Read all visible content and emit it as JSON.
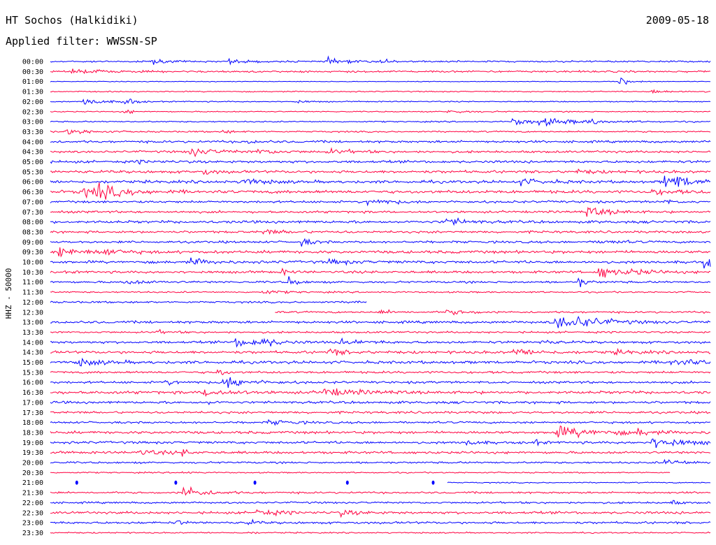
{
  "header": {
    "station": "HT Sochos (Halkidiki)",
    "date": "2009-05-18",
    "filter": "Applied filter: WWSSN-SP"
  },
  "chart_data": {
    "type": "line",
    "title": "HT Sochos (Halkidiki)",
    "ylabel": "HHZ - 50000",
    "xlabel": "",
    "row_labels": [
      "00:00",
      "00:30",
      "01:00",
      "01:30",
      "02:00",
      "02:30",
      "03:00",
      "03:30",
      "04:00",
      "04:30",
      "05:00",
      "05:30",
      "06:00",
      "06:30",
      "07:00",
      "07:30",
      "08:00",
      "08:30",
      "09:00",
      "09:30",
      "10:00",
      "10:30",
      "11:00",
      "11:30",
      "12:00",
      "12:30",
      "13:00",
      "13:30",
      "14:00",
      "14:30",
      "15:00",
      "15:30",
      "16:00",
      "16:30",
      "17:00",
      "17:30",
      "18:00",
      "18:30",
      "19:00",
      "19:30",
      "20:00",
      "20:30",
      "21:00",
      "21:30",
      "22:00",
      "22:30",
      "23:00",
      "23:30"
    ],
    "colors": [
      "#0000ff",
      "#ff0040"
    ],
    "minutes_per_line": 30,
    "rows": [
      {
        "noise": 0.9,
        "events": [
          [
            0.15,
            6,
            0.01
          ],
          [
            0.27,
            4,
            0.015
          ],
          [
            0.42,
            5,
            0.015
          ],
          [
            0.5,
            4,
            0.01
          ]
        ]
      },
      {
        "noise": 1,
        "events": [
          [
            0.03,
            3,
            0.02
          ],
          [
            0.06,
            3,
            0.01
          ]
        ]
      },
      {
        "noise": 0.4,
        "events": [
          [
            0.86,
            10,
            0.008
          ]
        ]
      },
      {
        "noise": 0.6,
        "events": [
          [
            0.91,
            3,
            0.02
          ]
        ]
      },
      {
        "noise": 0.6,
        "events": [
          [
            0.05,
            7,
            0.015
          ],
          [
            0.11,
            18,
            0.006
          ],
          [
            0.37,
            3,
            0.01
          ]
        ]
      },
      {
        "noise": 0.6,
        "events": [
          [
            0.11,
            14,
            0.004
          ],
          [
            0.6,
            3,
            0.02
          ]
        ]
      },
      {
        "noise": 0.7,
        "events": [
          [
            0.7,
            6,
            0.02
          ],
          [
            0.74,
            5,
            0.04
          ],
          [
            0.82,
            8,
            0.004
          ]
        ]
      },
      {
        "noise": 0.8,
        "events": [
          [
            0.02,
            6,
            0.02
          ],
          [
            0.26,
            3,
            0.01
          ]
        ]
      },
      {
        "noise": 1.2,
        "events": [
          [
            0.3,
            3,
            0.01
          ]
        ]
      },
      {
        "noise": 1.2,
        "events": [
          [
            0.21,
            8,
            0.02
          ],
          [
            0.31,
            4,
            0.02
          ],
          [
            0.42,
            4,
            0.02
          ]
        ]
      },
      {
        "noise": 1.3,
        "events": [
          [
            0.13,
            2,
            0.02
          ]
        ]
      },
      {
        "noise": 1.4,
        "events": [
          [
            0.23,
            5,
            0.01
          ],
          [
            0.79,
            3,
            0.02
          ]
        ]
      },
      {
        "noise": 1.5,
        "events": [
          [
            0.29,
            8,
            0.015
          ],
          [
            0.71,
            5,
            0.02
          ],
          [
            0.93,
            14,
            0.012
          ],
          [
            0.95,
            7,
            0.015
          ]
        ]
      },
      {
        "noise": 1.6,
        "events": [
          [
            0.05,
            10,
            0.03
          ],
          [
            0.07,
            8,
            0.015
          ],
          [
            0.91,
            4,
            0.02
          ]
        ]
      },
      {
        "noise": 1.2,
        "events": [
          [
            0.48,
            6,
            0.02
          ],
          [
            0.93,
            6,
            0.004
          ]
        ]
      },
      {
        "noise": 1.2,
        "events": [
          [
            0.81,
            9,
            0.02
          ]
        ]
      },
      {
        "noise": 1.4,
        "events": [
          [
            0.6,
            7,
            0.015
          ]
        ]
      },
      {
        "noise": 1.2,
        "events": [
          [
            0.32,
            4,
            0.02
          ]
        ]
      },
      {
        "noise": 1.2,
        "events": [
          [
            0.38,
            6,
            0.01
          ],
          [
            0.83,
            3,
            0.02
          ]
        ]
      },
      {
        "noise": 1.5,
        "events": [
          [
            0.01,
            9,
            0.02
          ],
          [
            0.08,
            6,
            0.015
          ]
        ]
      },
      {
        "noise": 1.4,
        "events": [
          [
            0.21,
            6,
            0.015
          ],
          [
            0.42,
            4,
            0.02
          ],
          [
            0.99,
            10,
            0.01
          ]
        ]
      },
      {
        "noise": 1.3,
        "events": [
          [
            0.35,
            6,
            0.005
          ],
          [
            0.83,
            12,
            0.015
          ],
          [
            0.88,
            4,
            0.02
          ]
        ]
      },
      {
        "noise": 1.1,
        "events": [
          [
            0.11,
            4,
            0.02
          ],
          [
            0.36,
            12,
            0.006
          ],
          [
            0.8,
            10,
            0.006
          ]
        ]
      },
      {
        "noise": 0.8,
        "events": [
          [
            0.32,
            3,
            0.02
          ]
        ]
      },
      {
        "noise": 1,
        "gap": [
          0.48,
          1.0
        ],
        "events": [
          [
            0.46,
            6,
            0.006
          ]
        ]
      },
      {
        "noise": 1,
        "gap": [
          0.0,
          0.34
        ],
        "events": [
          [
            0.6,
            4,
            0.02
          ],
          [
            0.5,
            4,
            0.01
          ]
        ]
      },
      {
        "noise": 1.3,
        "events": [
          [
            0.76,
            12,
            0.03
          ],
          [
            0.8,
            5,
            0.02
          ]
        ]
      },
      {
        "noise": 1,
        "events": [
          [
            0.16,
            3,
            0.01
          ]
        ]
      },
      {
        "noise": 1.3,
        "events": [
          [
            0.28,
            8,
            0.02
          ],
          [
            0.32,
            8,
            0.01
          ],
          [
            0.44,
            5,
            0.02
          ],
          [
            0.74,
            4,
            0.01
          ]
        ]
      },
      {
        "noise": 1.4,
        "events": [
          [
            0.42,
            6,
            0.015
          ],
          [
            0.7,
            6,
            0.02
          ],
          [
            0.85,
            3,
            0.02
          ]
        ]
      },
      {
        "noise": 1.5,
        "events": [
          [
            0.04,
            6,
            0.02
          ],
          [
            0.94,
            7,
            0.02
          ]
        ]
      },
      {
        "noise": 1.2,
        "events": [
          [
            0.25,
            10,
            0.006
          ]
        ]
      },
      {
        "noise": 1.2,
        "events": [
          [
            0.17,
            4,
            0.015
          ],
          [
            0.26,
            12,
            0.02
          ]
        ]
      },
      {
        "noise": 1.5,
        "events": [
          [
            0.23,
            7,
            0.02
          ],
          [
            0.41,
            7,
            0.03
          ]
        ]
      },
      {
        "noise": 1.3,
        "events": [
          [
            0.24,
            3,
            0.005
          ]
        ]
      },
      {
        "noise": 1.2,
        "events": []
      },
      {
        "noise": 1.1,
        "events": [
          [
            0.33,
            4,
            0.02
          ]
        ]
      },
      {
        "noise": 1.4,
        "events": [
          [
            0.76,
            10,
            0.04
          ],
          [
            0.89,
            6,
            0.008
          ]
        ]
      },
      {
        "noise": 1.3,
        "events": [
          [
            0.63,
            5,
            0.01
          ],
          [
            0.73,
            9,
            0.004
          ],
          [
            0.91,
            10,
            0.025
          ]
        ]
      },
      {
        "noise": 1.3,
        "events": [
          [
            0.13,
            5,
            0.02
          ],
          [
            0.2,
            5,
            0.006
          ]
        ]
      },
      {
        "noise": 1,
        "events": [
          [
            0.93,
            5,
            0.02
          ]
        ]
      },
      {
        "noise": 0.7,
        "gap": [
          0.94,
          1.0
        ],
        "events": [
          [
            0.2,
            4,
            0.005
          ]
        ]
      },
      {
        "noise": 0.6,
        "gap": [
          0.0,
          0.6
        ],
        "blips": [
          0.04,
          0.19,
          0.31,
          0.45,
          0.58
        ],
        "events": []
      },
      {
        "noise": 1,
        "events": [
          [
            0.2,
            14,
            0.006
          ],
          [
            0.21,
            6,
            0.02
          ]
        ]
      },
      {
        "noise": 1,
        "events": [
          [
            0.94,
            5,
            0.006
          ]
        ]
      },
      {
        "noise": 1.3,
        "events": [
          [
            0.31,
            6,
            0.02
          ],
          [
            0.44,
            5,
            0.015
          ]
        ]
      },
      {
        "noise": 1.2,
        "events": [
          [
            0.19,
            5,
            0.005
          ],
          [
            0.3,
            5,
            0.006
          ]
        ]
      },
      {
        "noise": 0.7,
        "events": [
          [
            0.3,
            3,
            0.005
          ]
        ]
      }
    ]
  }
}
